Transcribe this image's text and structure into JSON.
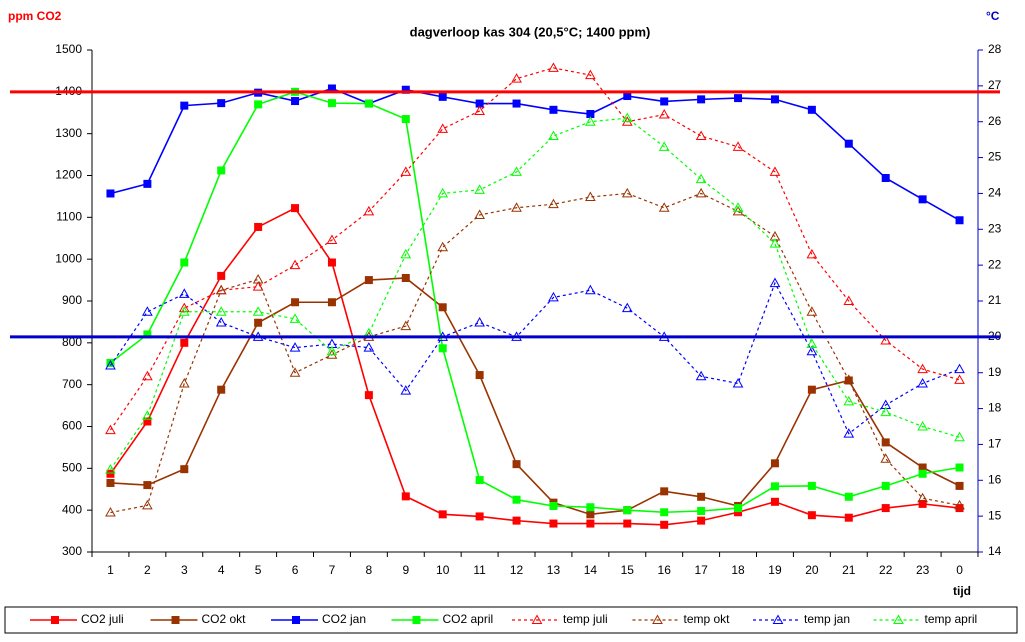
{
  "chart_data": {
    "type": "line",
    "title": "dagverloop kas 304 (20,5°C; 1400 ppm)",
    "ylabel": "ppm CO2",
    "y2label": "°C",
    "xlabel": "tijd",
    "categories": [
      "1",
      "2",
      "3",
      "4",
      "5",
      "6",
      "7",
      "8",
      "9",
      "10",
      "11",
      "12",
      "13",
      "14",
      "15",
      "16",
      "17",
      "18",
      "19",
      "20",
      "21",
      "22",
      "23",
      "0"
    ],
    "ylim": [
      300,
      1500
    ],
    "yticks": [
      300,
      400,
      500,
      600,
      700,
      800,
      900,
      1000,
      1100,
      1200,
      1300,
      1400,
      1500
    ],
    "y2lim": [
      14,
      28
    ],
    "y2ticks": [
      14,
      15,
      16,
      17,
      18,
      19,
      20,
      21,
      22,
      23,
      24,
      25,
      26,
      27,
      28
    ],
    "grid": false,
    "legend": "bottom",
    "reference_lines": [
      {
        "value": 1400,
        "axis": "y",
        "color": "#ff0000"
      },
      {
        "value": 20,
        "axis": "y2",
        "color": "#0000cc"
      }
    ],
    "series": [
      {
        "name": "CO2 juli",
        "color": "#ff0000",
        "marker": "square",
        "dash": false,
        "axis": "y",
        "values": [
          487,
          612,
          800,
          960,
          1077,
          1122,
          992,
          675,
          433,
          390,
          385,
          375,
          368,
          368,
          368,
          365,
          375,
          395,
          420,
          388,
          382,
          405,
          415,
          405
        ]
      },
      {
        "name": "CO2 okt",
        "color": "#993300",
        "marker": "square",
        "dash": false,
        "axis": "y",
        "values": [
          465,
          460,
          498,
          688,
          848,
          897,
          897,
          950,
          955,
          885,
          723,
          510,
          418,
          390,
          400,
          445,
          432,
          410,
          512,
          688,
          710,
          562,
          502,
          458
        ]
      },
      {
        "name": "CO2 jan",
        "color": "#0000ff",
        "marker": "square",
        "dash": false,
        "axis": "y",
        "values": [
          1157,
          1180,
          1367,
          1373,
          1398,
          1378,
          1408,
          1372,
          1405,
          1388,
          1372,
          1372,
          1357,
          1347,
          1390,
          1377,
          1382,
          1385,
          1382,
          1357,
          1276,
          1194,
          1143,
          1093
        ]
      },
      {
        "name": "CO2 april",
        "color": "#00ff00",
        "marker": "square",
        "dash": false,
        "axis": "y",
        "values": [
          752,
          820,
          992,
          1212,
          1370,
          1400,
          1373,
          1372,
          1335,
          787,
          472,
          425,
          410,
          407,
          400,
          395,
          398,
          405,
          457,
          458,
          432,
          458,
          487,
          502
        ]
      },
      {
        "name": "temp juli",
        "color": "#ff0000",
        "marker": "triangle",
        "dash": true,
        "axis": "y2",
        "values": [
          17.4,
          18.9,
          20.8,
          21.3,
          21.4,
          22.0,
          22.7,
          23.5,
          24.6,
          25.8,
          26.3,
          27.2,
          27.5,
          27.3,
          26.0,
          26.2,
          25.6,
          25.3,
          24.6,
          22.3,
          21.0,
          19.9,
          19.1,
          18.8
        ]
      },
      {
        "name": "temp okt",
        "color": "#993300",
        "marker": "triangle",
        "dash": true,
        "axis": "y2",
        "values": [
          15.1,
          15.3,
          18.7,
          21.3,
          21.6,
          19.0,
          19.5,
          20.0,
          20.3,
          22.5,
          23.4,
          23.6,
          23.7,
          23.9,
          24.0,
          23.6,
          24.0,
          23.5,
          22.8,
          20.7,
          18.8,
          16.6,
          15.5,
          15.3
        ]
      },
      {
        "name": "temp jan",
        "color": "#0000ff",
        "marker": "triangle",
        "dash": true,
        "axis": "y2",
        "values": [
          19.2,
          20.7,
          21.2,
          20.4,
          20.0,
          19.7,
          19.8,
          19.7,
          18.5,
          20.0,
          20.4,
          20.0,
          21.1,
          21.3,
          20.8,
          20.0,
          18.9,
          18.7,
          21.5,
          19.6,
          17.3,
          18.1,
          18.7,
          19.1
        ]
      },
      {
        "name": "temp april",
        "color": "#00ff00",
        "marker": "triangle",
        "dash": true,
        "axis": "y2",
        "values": [
          16.3,
          17.8,
          20.7,
          20.7,
          20.7,
          20.5,
          19.6,
          20.1,
          22.3,
          24.0,
          24.1,
          24.6,
          25.6,
          26.0,
          26.1,
          25.3,
          24.4,
          23.6,
          22.6,
          19.8,
          18.2,
          17.9,
          17.5,
          17.2
        ]
      }
    ]
  }
}
